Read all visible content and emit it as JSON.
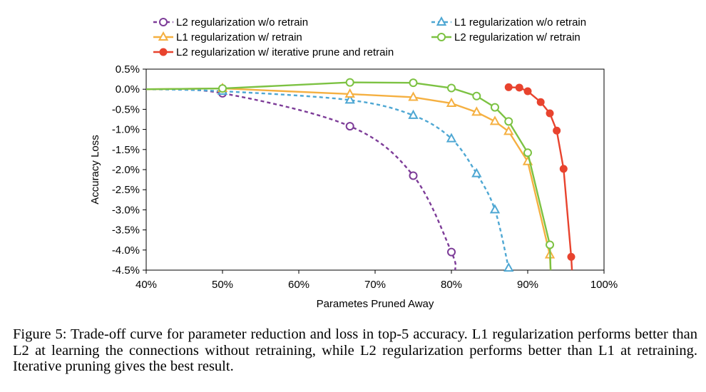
{
  "chart_data": {
    "type": "line",
    "title": "",
    "xlabel": "Parametes Pruned Away",
    "ylabel": "Accuracy Loss",
    "xlim": [
      0.4,
      1.0
    ],
    "ylim": [
      -4.5,
      0.5
    ],
    "x_ticks": [
      "40%",
      "50%",
      "60%",
      "70%",
      "80%",
      "90%",
      "100%"
    ],
    "x_tick_values": [
      0.4,
      0.5,
      0.6,
      0.7,
      0.8,
      0.9,
      1.0
    ],
    "y_ticks": [
      "0.5%",
      "0.0%",
      "-0.5%",
      "-1.0%",
      "-1.5%",
      "-2.0%",
      "-2.5%",
      "-3.0%",
      "-3.5%",
      "-4.0%",
      "-4.5%"
    ],
    "y_tick_values": [
      0.5,
      0.0,
      -0.5,
      -1.0,
      -1.5,
      -2.0,
      -2.5,
      -3.0,
      -3.5,
      -4.0,
      -4.5
    ],
    "grid": false,
    "legend_position": "top",
    "series": [
      {
        "name": "L2 regularization w/o retrain",
        "color": "#7d3c98",
        "marker": "circle-open",
        "line_style": "dashed",
        "x": [
          0.4,
          0.5,
          0.667,
          0.75,
          0.8,
          0.805
        ],
        "y": [
          0.0,
          -0.1,
          -0.92,
          -2.15,
          -4.05,
          -4.5
        ]
      },
      {
        "name": "L1 regularization w/o retrain",
        "color": "#4ea7d3",
        "marker": "triangle-open",
        "line_style": "dashed",
        "x": [
          0.4,
          0.5,
          0.667,
          0.75,
          0.8,
          0.833,
          0.857,
          0.875
        ],
        "y": [
          0.0,
          -0.05,
          -0.27,
          -0.65,
          -1.23,
          -2.1,
          -3.0,
          -4.45
        ]
      },
      {
        "name": "L1 regularization w/ retrain",
        "color": "#f5b041",
        "marker": "triangle-open",
        "line_style": "solid",
        "x": [
          0.4,
          0.5,
          0.667,
          0.75,
          0.8,
          0.833,
          0.857,
          0.875,
          0.9,
          0.929,
          0.93
        ],
        "y": [
          0.0,
          0.02,
          -0.12,
          -0.2,
          -0.35,
          -0.57,
          -0.8,
          -1.05,
          -1.8,
          -4.12,
          -4.5
        ]
      },
      {
        "name": "L2 regularization w/ retrain",
        "color": "#7cc242",
        "marker": "circle-open",
        "line_style": "solid",
        "x": [
          0.4,
          0.5,
          0.667,
          0.75,
          0.8,
          0.833,
          0.857,
          0.875,
          0.9,
          0.929,
          0.93
        ],
        "y": [
          0.0,
          0.02,
          0.17,
          0.16,
          0.03,
          -0.17,
          -0.45,
          -0.8,
          -1.58,
          -3.87,
          -4.5
        ]
      },
      {
        "name": "L2 regularization w/ iterative prune and retrain",
        "color": "#e8432e",
        "marker": "circle-filled",
        "line_style": "solid",
        "x": [
          0.875,
          0.889,
          0.9,
          0.917,
          0.929,
          0.938,
          0.947,
          0.957,
          0.958
        ],
        "y": [
          0.05,
          0.04,
          -0.05,
          -0.32,
          -0.6,
          -1.03,
          -1.98,
          -4.17,
          -4.5
        ]
      }
    ]
  },
  "caption": "Figure 5: Trade-off curve for parameter reduction and loss in top-5 accuracy. L1 regularization performs better than L2 at learning the connections without retraining, while L2 regularization performs better than L1 at retraining. Iterative pruning gives the best result."
}
